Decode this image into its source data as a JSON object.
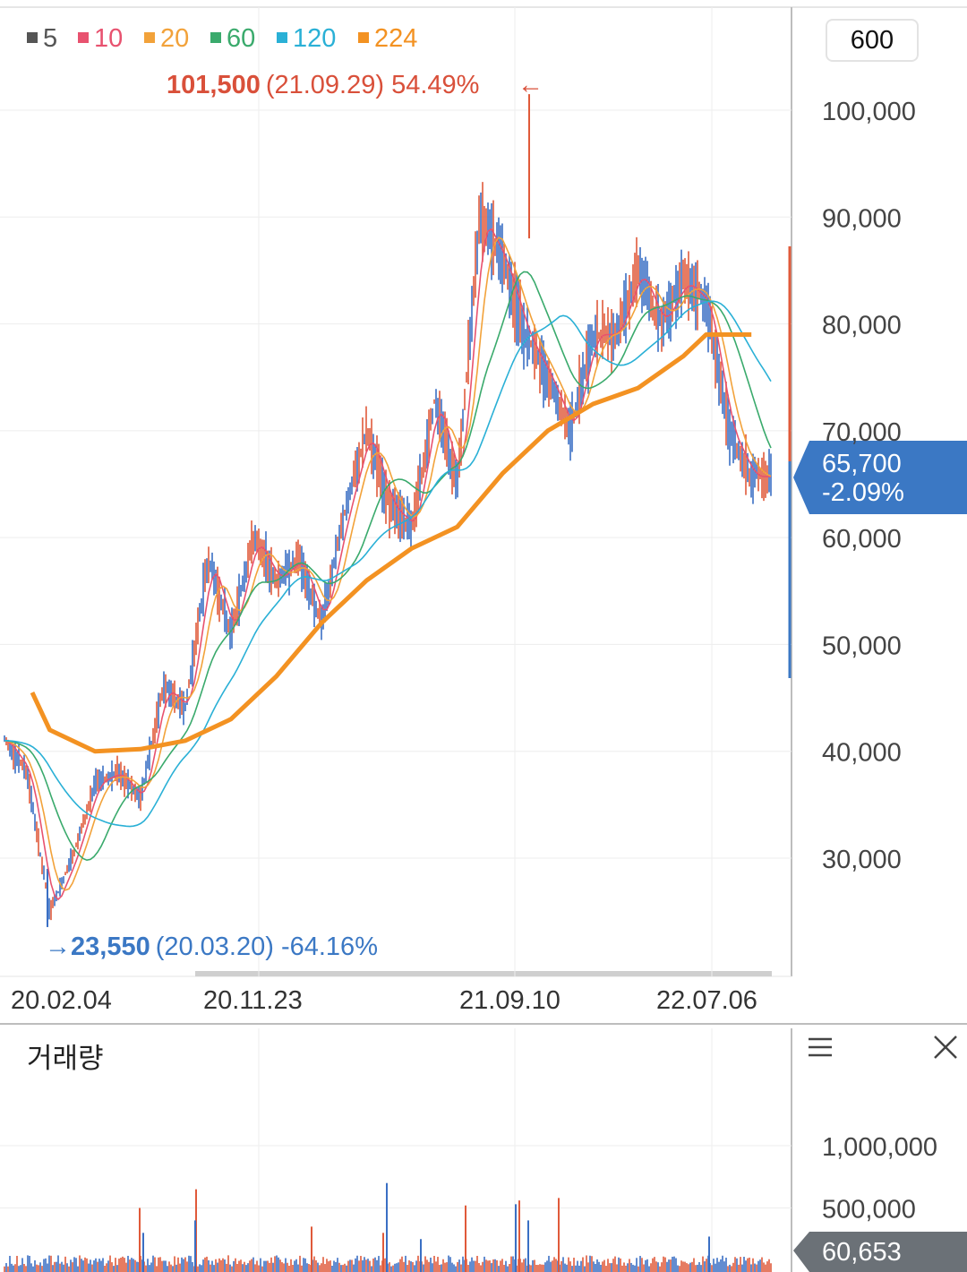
{
  "legend": [
    {
      "label": "5",
      "color": "#555555"
    },
    {
      "label": "10",
      "color": "#e8526f"
    },
    {
      "label": "20",
      "color": "#f2a23a"
    },
    {
      "label": "60",
      "color": "#3aaa6c"
    },
    {
      "label": "120",
      "color": "#2ab0d6"
    },
    {
      "label": "224",
      "color": "#f39222"
    }
  ],
  "period_button": "600",
  "annotations": {
    "high_value": "101,500",
    "high_info": "(21.09.29) 54.49%",
    "low_value": "23,550",
    "low_info": "(20.03.20) -64.16%"
  },
  "current": {
    "price": "65,700",
    "change": "-2.09%"
  },
  "price_axis_ticks": [
    "100,000",
    "90,000",
    "80,000",
    "70,000",
    "60,000",
    "50,000",
    "40,000",
    "30,000"
  ],
  "date_axis_ticks": [
    "20.02.04",
    "20.11.23",
    "21.09.10",
    "22.07.06"
  ],
  "volume": {
    "title": "거래량",
    "ticks": [
      "1,000,000",
      "500,000"
    ],
    "current": "60,653"
  },
  "colors": {
    "up": "#e05a3a",
    "down": "#3a6fc4",
    "ma224": "#f39222",
    "badge_price": "#3b78c4",
    "badge_volume": "#6b7177"
  },
  "chart_data": {
    "type": "line",
    "title": "",
    "xlabel": "",
    "ylabel": "",
    "x_ticks": [
      "20.02.04",
      "20.11.23",
      "21.09.10",
      "22.07.06"
    ],
    "ylim": [
      20000,
      107000
    ],
    "series": [
      {
        "name": "5",
        "points": [
          [
            "20.01",
            41000
          ],
          [
            "20.02",
            38000
          ],
          [
            "20.03",
            25000
          ],
          [
            "20.04",
            30000
          ],
          [
            "20.05",
            37000
          ],
          [
            "20.06",
            38000
          ],
          [
            "20.07",
            35500
          ],
          [
            "20.08",
            46000
          ],
          [
            "20.09",
            44000
          ],
          [
            "20.10",
            58000
          ],
          [
            "20.11",
            51000
          ],
          [
            "20.12",
            60000
          ],
          [
            "21.01",
            56000
          ],
          [
            "21.02",
            58000
          ],
          [
            "21.03",
            52000
          ],
          [
            "21.04",
            62000
          ],
          [
            "21.05",
            70000
          ],
          [
            "21.06",
            63000
          ],
          [
            "21.07",
            61000
          ],
          [
            "21.08",
            73000
          ],
          [
            "21.09",
            65000
          ],
          [
            "21.10",
            90000
          ],
          [
            "21.11",
            86000
          ],
          [
            "21.12",
            79000
          ],
          [
            "22.01",
            75000
          ],
          [
            "22.02",
            70000
          ],
          [
            "22.03",
            79000
          ],
          [
            "22.04",
            79000
          ],
          [
            "22.05",
            85000
          ],
          [
            "22.06",
            80000
          ],
          [
            "22.07",
            84000
          ],
          [
            "22.08",
            82000
          ],
          [
            "22.09",
            70000
          ],
          [
            "22.10",
            65700
          ]
        ]
      },
      {
        "name": "224",
        "points": [
          [
            "20.01",
            45500
          ],
          [
            "20.03",
            42000
          ],
          [
            "20.05",
            40000
          ],
          [
            "20.07",
            40200
          ],
          [
            "20.09",
            41000
          ],
          [
            "20.11",
            43000
          ],
          [
            "21.01",
            47000
          ],
          [
            "21.03",
            52000
          ],
          [
            "21.05",
            56000
          ],
          [
            "21.07",
            59000
          ],
          [
            "21.09",
            61000
          ],
          [
            "21.11",
            66000
          ],
          [
            "22.01",
            70000
          ],
          [
            "22.03",
            72500
          ],
          [
            "22.05",
            74000
          ],
          [
            "22.07",
            77000
          ],
          [
            "22.08",
            79000
          ],
          [
            "22.10",
            79000
          ]
        ]
      }
    ],
    "high": {
      "value": "101,500",
      "date": "21.09.29",
      "change": "54.49%"
    },
    "low": {
      "value": "23,550",
      "date": "20.03.20",
      "change": "-64.16%"
    },
    "last_price": 65700,
    "volume": {
      "ylim": [
        0,
        1500000
      ],
      "last": 60653
    }
  }
}
